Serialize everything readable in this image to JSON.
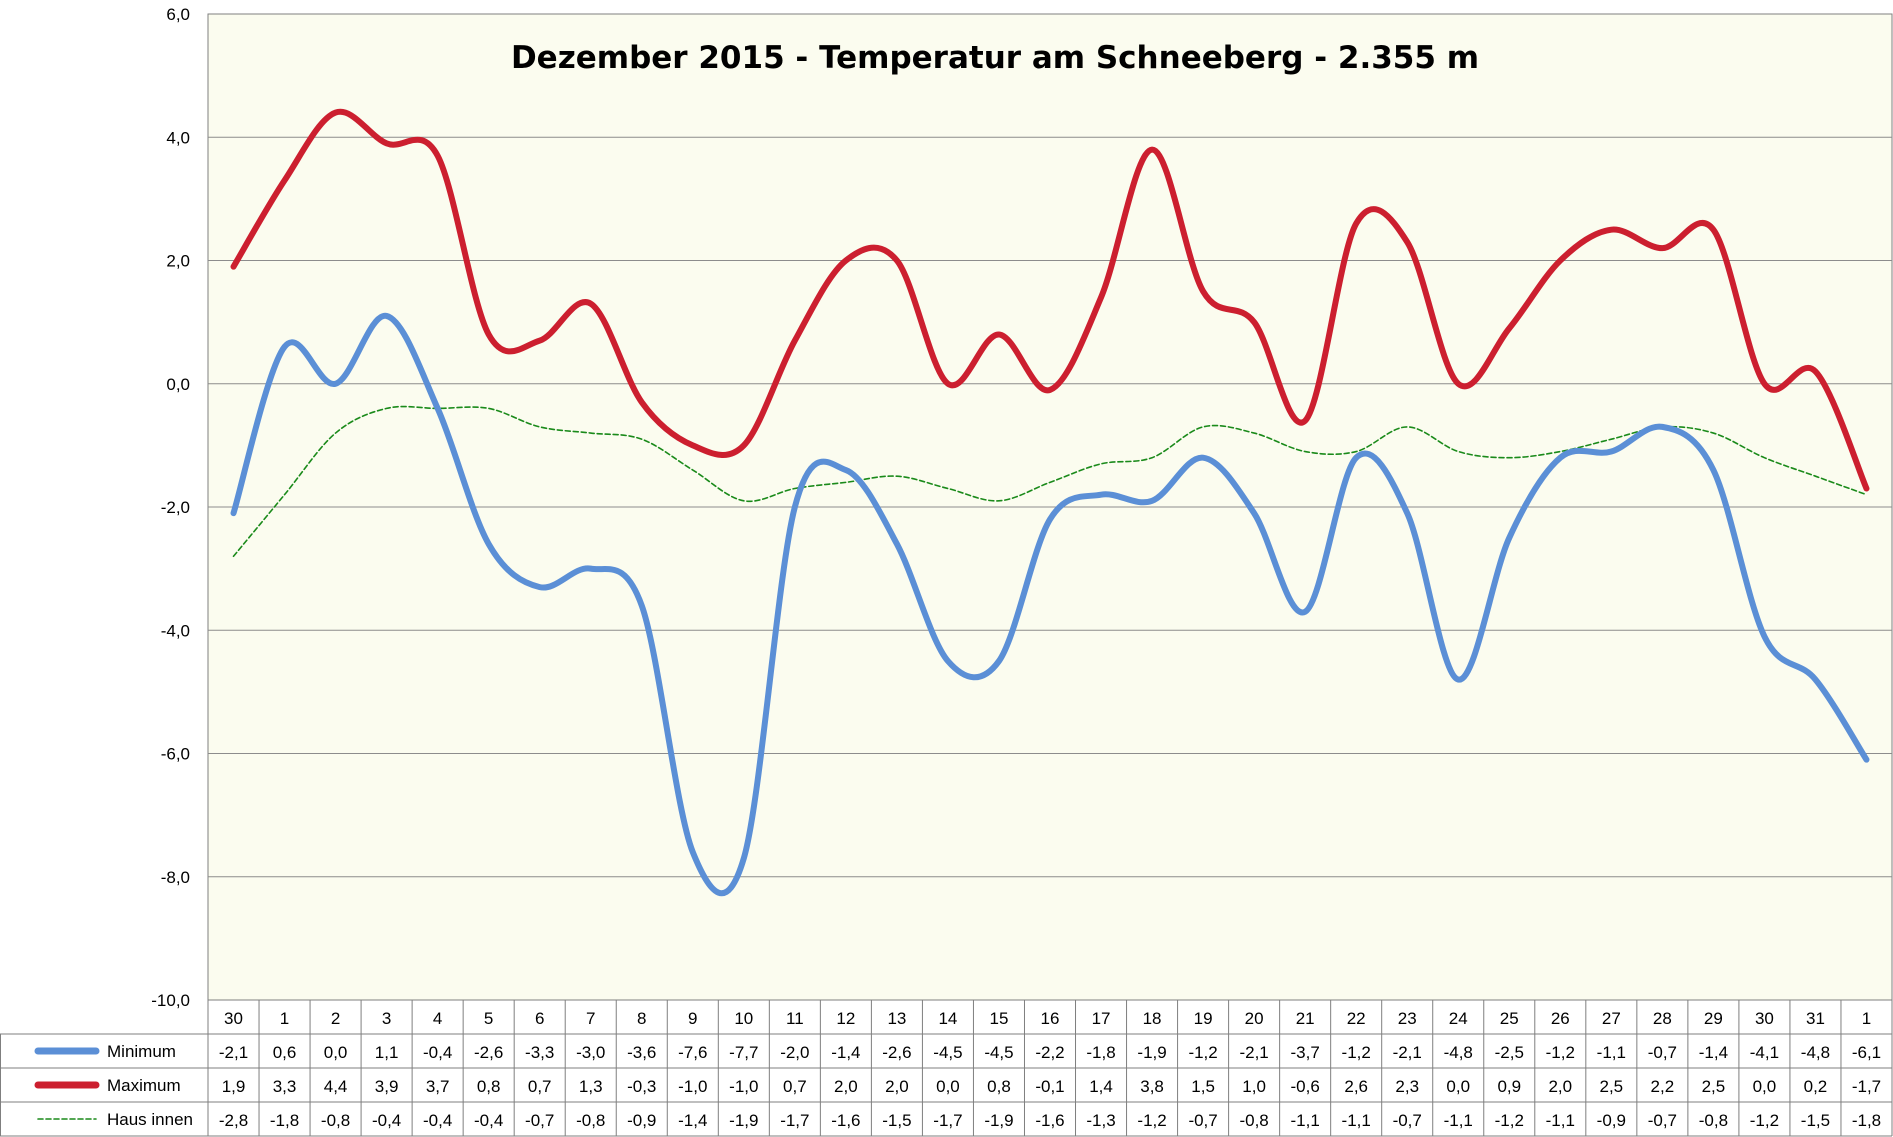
{
  "chart_data": {
    "type": "line",
    "title": "Dezember 2015 - Temperatur am Schneeberg - 2.355 m",
    "categories": [
      "30",
      "1",
      "2",
      "3",
      "4",
      "5",
      "6",
      "7",
      "8",
      "9",
      "10",
      "11",
      "12",
      "13",
      "14",
      "15",
      "16",
      "17",
      "18",
      "19",
      "20",
      "21",
      "22",
      "23",
      "24",
      "25",
      "26",
      "27",
      "28",
      "29",
      "30",
      "31",
      "1"
    ],
    "ylim": [
      -10,
      6
    ],
    "yticks": [
      "-10,0",
      "-8,0",
      "-6,0",
      "-4,0",
      "-2,0",
      "0,0",
      "2,0",
      "4,0",
      "6,0"
    ],
    "grid": true,
    "legend": "data-table-left",
    "series": [
      {
        "name": "Minimum",
        "color": "#5b8fd6",
        "style": "solid-thick",
        "values": [
          -2.1,
          0.6,
          0.0,
          1.1,
          -0.4,
          -2.6,
          -3.3,
          -3.0,
          -3.6,
          -7.6,
          -7.7,
          -2.0,
          -1.4,
          -2.6,
          -4.5,
          -4.5,
          -2.2,
          -1.8,
          -1.9,
          -1.2,
          -2.1,
          -3.7,
          -1.2,
          -2.1,
          -4.8,
          -2.5,
          -1.2,
          -1.1,
          -0.7,
          -1.4,
          -4.1,
          -4.8,
          -6.1
        ],
        "labels": [
          "-2,1",
          "0,6",
          "0,0",
          "1,1",
          "-0,4",
          "-2,6",
          "-3,3",
          "-3,0",
          "-3,6",
          "-7,6",
          "-7,7",
          "-2,0",
          "-1,4",
          "-2,6",
          "-4,5",
          "-4,5",
          "-2,2",
          "-1,8",
          "-1,9",
          "-1,2",
          "-2,1",
          "-3,7",
          "-1,2",
          "-2,1",
          "-4,8",
          "-2,5",
          "-1,2",
          "-1,1",
          "-0,7",
          "-1,4",
          "-4,1",
          "-4,8",
          "-6,1"
        ]
      },
      {
        "name": "Maximum",
        "color": "#cc1f2f",
        "style": "solid-thick",
        "values": [
          1.9,
          3.3,
          4.4,
          3.9,
          3.7,
          0.8,
          0.7,
          1.3,
          -0.3,
          -1.0,
          -1.0,
          0.7,
          2.0,
          2.0,
          0.0,
          0.8,
          -0.1,
          1.4,
          3.8,
          1.5,
          1.0,
          -0.6,
          2.6,
          2.3,
          0.0,
          0.9,
          2.0,
          2.5,
          2.2,
          2.5,
          0.0,
          0.2,
          -1.7
        ],
        "labels": [
          "1,9",
          "3,3",
          "4,4",
          "3,9",
          "3,7",
          "0,8",
          "0,7",
          "1,3",
          "-0,3",
          "-1,0",
          "-1,0",
          "0,7",
          "2,0",
          "2,0",
          "0,0",
          "0,8",
          "-0,1",
          "1,4",
          "3,8",
          "1,5",
          "1,0",
          "-0,6",
          "2,6",
          "2,3",
          "0,0",
          "0,9",
          "2,0",
          "2,5",
          "2,2",
          "2,5",
          "0,0",
          "0,2",
          "-1,7"
        ]
      },
      {
        "name": "Haus innen",
        "color": "#1a8a1a",
        "style": "dashed-thin",
        "values": [
          -2.8,
          -1.8,
          -0.8,
          -0.4,
          -0.4,
          -0.4,
          -0.7,
          -0.8,
          -0.9,
          -1.4,
          -1.9,
          -1.7,
          -1.6,
          -1.5,
          -1.7,
          -1.9,
          -1.6,
          -1.3,
          -1.2,
          -0.7,
          -0.8,
          -1.1,
          -1.1,
          -0.7,
          -1.1,
          -1.2,
          -1.1,
          -0.9,
          -0.7,
          -0.8,
          -1.2,
          -1.5,
          -1.8
        ],
        "labels": [
          "-2,8",
          "-1,8",
          "-0,8",
          "-0,4",
          "-0,4",
          "-0,4",
          "-0,7",
          "-0,8",
          "-0,9",
          "-1,4",
          "-1,9",
          "-1,7",
          "-1,6",
          "-1,5",
          "-1,7",
          "-1,9",
          "-1,6",
          "-1,3",
          "-1,2",
          "-0,7",
          "-0,8",
          "-1,1",
          "-1,1",
          "-0,7",
          "-1,1",
          "-1,2",
          "-1,1",
          "-0,9",
          "-0,7",
          "-0,8",
          "-1,2",
          "-1,5",
          "-1,8"
        ]
      }
    ],
    "plot_background": "#fbfcef",
    "grid_color": "#8c8c8c"
  }
}
